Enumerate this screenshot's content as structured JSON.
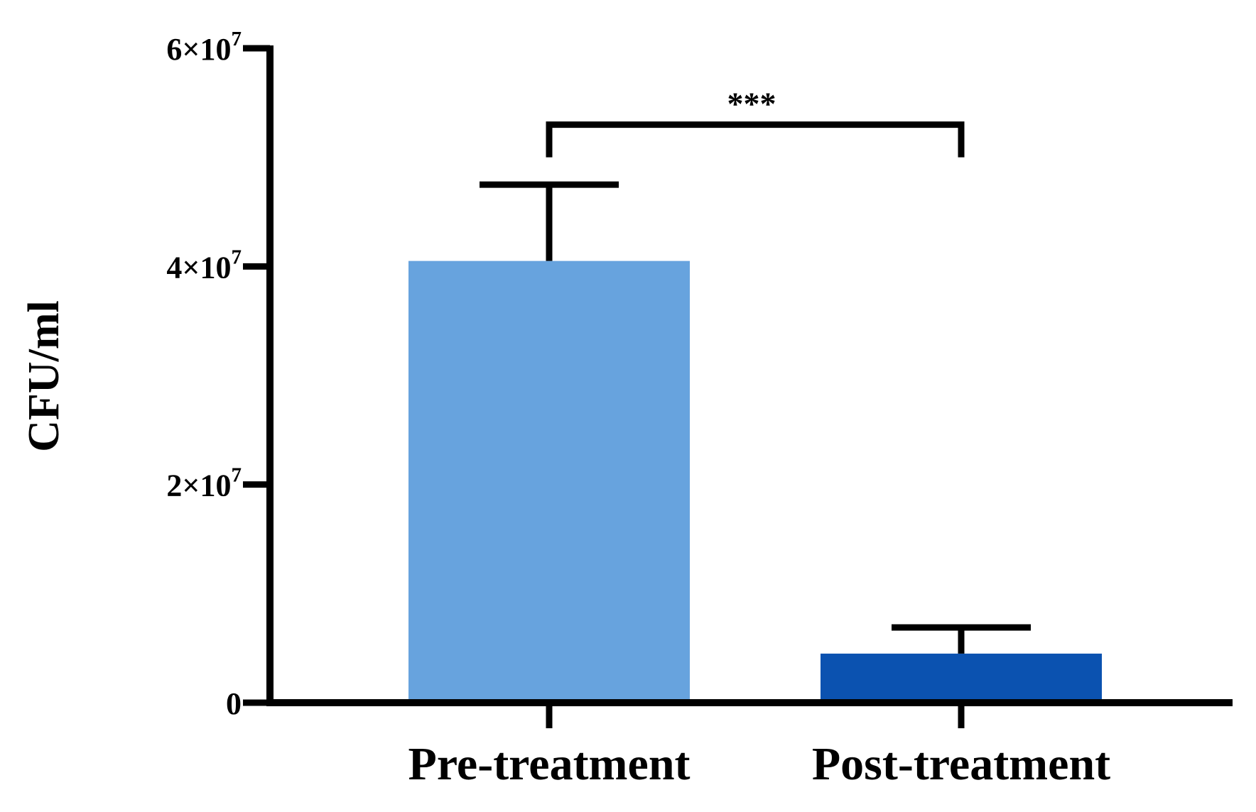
{
  "chart_data": {
    "type": "bar",
    "title": "",
    "xlabel": "",
    "ylabel": "CFU/ml",
    "ylim": [
      0,
      60000000
    ],
    "categories": [
      "Pre-treatment",
      "Post-treatment"
    ],
    "values": [
      40500000,
      4500000
    ],
    "error_upper": [
      47500000,
      6900000
    ],
    "colors": [
      "#67a3de",
      "#0b52b0"
    ],
    "yticks": [
      {
        "value": 0,
        "label": "0"
      },
      {
        "value": 20000000,
        "base": "2×10",
        "exp": "7"
      },
      {
        "value": 40000000,
        "base": "4×10",
        "exp": "7"
      },
      {
        "value": 60000000,
        "base": "6×10",
        "exp": "7"
      }
    ],
    "significance": {
      "label": "***",
      "from": 0,
      "to": 1,
      "level": 53000000,
      "drop_to": 50000000
    },
    "grid": false,
    "legend": "none"
  }
}
